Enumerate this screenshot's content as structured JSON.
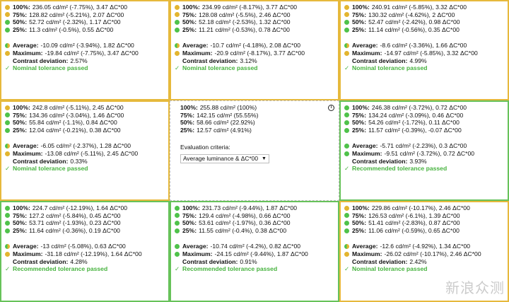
{
  "cells": [
    {
      "border": "#e6b93c",
      "rows": [
        {
          "label": "100%:",
          "value": "236.05 cd/m² (-7.75%), 3.47 ΔC*00",
          "dot": "yellow"
        },
        {
          "label": "75%:",
          "value": "128.82 cd/m² (-5.21%), 2.07 ΔC*00",
          "dot": "yellow"
        },
        {
          "label": "50%:",
          "value": "52.72 cd/m² (-2.32%), 1.17 ΔC*00",
          "dot": "green"
        },
        {
          "label": "25%:",
          "value": "11.3 cd/m² (-0.5%), 0.55 ΔC*00",
          "dot": "green"
        }
      ],
      "average": {
        "label": "Average:",
        "value": "-10.09 cd/m² (-3.94%), 1.82 ΔC*00",
        "dot": "half"
      },
      "maximum": {
        "label": "Maximum:",
        "value": "-19.84 cd/m² (-7.75%), 3.47 ΔC*00",
        "dot": "yellow"
      },
      "contrast": {
        "label": "Contrast deviation:",
        "value": "2.57%"
      },
      "status": "Nominal tolerance passed"
    },
    {
      "border": "#e6b93c",
      "rows": [
        {
          "label": "100%:",
          "value": "234.99 cd/m² (-8.17%), 3.77 ΔC*00",
          "dot": "yellow"
        },
        {
          "label": "75%:",
          "value": "128.08 cd/m² (-5.5%), 2.46 ΔC*00",
          "dot": "yellow"
        },
        {
          "label": "50%:",
          "value": "52.18 cd/m² (-2.53%), 1.32 ΔC*00",
          "dot": "green"
        },
        {
          "label": "25%:",
          "value": "11.21 cd/m² (-0.53%), 0.78 ΔC*00",
          "dot": "green"
        }
      ],
      "average": {
        "label": "Average:",
        "value": "-10.7 cd/m² (-4.18%), 2.08 ΔC*00",
        "dot": "half"
      },
      "maximum": {
        "label": "Maximum:",
        "value": "-20.9 cd/m² (-8.17%), 3.77 ΔC*00",
        "dot": "yellow"
      },
      "contrast": {
        "label": "Contrast deviation:",
        "value": "3.12%"
      },
      "status": "Nominal tolerance passed"
    },
    {
      "border": "#e6b93c",
      "rows": [
        {
          "label": "100%:",
          "value": "240.91 cd/m² (-5.85%), 3.32 ΔC*00",
          "dot": "yellow"
        },
        {
          "label": "75%:",
          "value": "130.32 cd/m² (-4.62%), 2 ΔC*00",
          "dot": "yellow"
        },
        {
          "label": "50%:",
          "value": "52.47 cd/m² (-2.42%), 0.98 ΔC*00",
          "dot": "green"
        },
        {
          "label": "25%:",
          "value": "11.14 cd/m² (-0.56%), 0.35 ΔC*00",
          "dot": "green"
        }
      ],
      "average": {
        "label": "Average:",
        "value": "-8.6 cd/m² (-3.36%), 1.66 ΔC*00",
        "dot": "half"
      },
      "maximum": {
        "label": "Maximum:",
        "value": "-14.97 cd/m² (-5.85%), 3.32 ΔC*00",
        "dot": "yellow"
      },
      "contrast": {
        "label": "Contrast deviation:",
        "value": "4.99%"
      },
      "status": "Nominal tolerance passed"
    },
    {
      "border": "#e6b93c",
      "rows": [
        {
          "label": "100%:",
          "value": "242.8 cd/m² (-5.11%), 2.45 ΔC*00",
          "dot": "yellow"
        },
        {
          "label": "75%:",
          "value": "134.36 cd/m² (-3.04%), 1.46 ΔC*00",
          "dot": "green"
        },
        {
          "label": "50%:",
          "value": "55.84 cd/m² (-1.1%), 0.84 ΔC*00",
          "dot": "green"
        },
        {
          "label": "25%:",
          "value": "12.04 cd/m² (-0.21%), 0.38 ΔC*00",
          "dot": "green"
        }
      ],
      "average": {
        "label": "Average:",
        "value": "-6.05 cd/m² (-2.37%), 1.28 ΔC*00",
        "dot": "half"
      },
      "maximum": {
        "label": "Maximum:",
        "value": "-13.08 cd/m² (-5.11%), 2.45 ΔC*00",
        "dot": "yellow"
      },
      "contrast": {
        "label": "Contrast deviation:",
        "value": "0.33%"
      },
      "status": "Nominal tolerance passed"
    },
    {
      "reference": true,
      "rows": [
        {
          "label": "100%:",
          "value": "255.88 cd/m² (100%)"
        },
        {
          "label": "75%:",
          "value": "142.15 cd/m² (55.55%)"
        },
        {
          "label": "50%:",
          "value": "58.66 cd/m² (22.92%)"
        },
        {
          "label": "25%:",
          "value": "12.57 cd/m² (4.91%)"
        }
      ],
      "criteria_label": "Evaluation criteria:",
      "criteria_value": "Average luminance & ΔC*00",
      "info_icon": "info-icon"
    },
    {
      "border": "#67c25a",
      "rows": [
        {
          "label": "100%:",
          "value": "246.38 cd/m² (-3.72%), 0.72 ΔC*00",
          "dot": "green"
        },
        {
          "label": "75%:",
          "value": "134.24 cd/m² (-3.09%), 0.46 ΔC*00",
          "dot": "green"
        },
        {
          "label": "50%:",
          "value": "54.26 cd/m² (-1.72%), 0.11 ΔC*00",
          "dot": "green"
        },
        {
          "label": "25%:",
          "value": "11.57 cd/m² (-0.39%), -0.07 ΔC*00",
          "dot": "green"
        }
      ],
      "average": {
        "label": "Average:",
        "value": "-5.71 cd/m² (-2.23%), 0.3 ΔC*00",
        "dot": "green"
      },
      "maximum": {
        "label": "Maximum:",
        "value": "-9.51 cd/m² (-3.72%), 0.72 ΔC*00",
        "dot": "green"
      },
      "contrast": {
        "label": "Contrast deviation:",
        "value": "3.93%"
      },
      "status": "Recommended tolerance passed"
    },
    {
      "border": "#67c25a",
      "rows": [
        {
          "label": "100%:",
          "value": "224.7 cd/m² (-12.19%), 1.64 ΔC*00",
          "dot": "green"
        },
        {
          "label": "75%:",
          "value": "127.2 cd/m² (-5.84%), 0.45 ΔC*00",
          "dot": "green"
        },
        {
          "label": "50%:",
          "value": "53.71 cd/m² (-1.93%), 0.23 ΔC*00",
          "dot": "green"
        },
        {
          "label": "25%:",
          "value": "11.64 cd/m² (-0.36%), 0.19 ΔC*00",
          "dot": "green"
        }
      ],
      "average": {
        "label": "Average:",
        "value": "-13 cd/m² (-5.08%), 0.63 ΔC*00",
        "dot": "half"
      },
      "maximum": {
        "label": "Maximum:",
        "value": "-31.18 cd/m² (-12.19%), 1.64 ΔC*00",
        "dot": "yellow"
      },
      "contrast": {
        "label": "Contrast deviation:",
        "value": "4.28%"
      },
      "status": "Recommended tolerance passed"
    },
    {
      "border": "#67c25a",
      "rows": [
        {
          "label": "100%:",
          "value": "231.73 cd/m² (-9.44%), 1.87 ΔC*00",
          "dot": "green"
        },
        {
          "label": "75%:",
          "value": "129.4 cd/m² (-4.98%), 0.66 ΔC*00",
          "dot": "green"
        },
        {
          "label": "50%:",
          "value": "53.61 cd/m² (-1.97%), 0.36 ΔC*00",
          "dot": "green"
        },
        {
          "label": "25%:",
          "value": "11.55 cd/m² (-0.4%), 0.38 ΔC*00",
          "dot": "green"
        }
      ],
      "average": {
        "label": "Average:",
        "value": "-10.74 cd/m² (-4.2%), 0.82 ΔC*00",
        "dot": "green"
      },
      "maximum": {
        "label": "Maximum:",
        "value": "-24.15 cd/m² (-9.44%), 1.87 ΔC*00",
        "dot": "green"
      },
      "contrast": {
        "label": "Contrast deviation:",
        "value": "0.91%"
      },
      "status": "Recommended tolerance passed"
    },
    {
      "border": "#e6b93c",
      "rows": [
        {
          "label": "100%:",
          "value": "229.86 cd/m² (-10.17%), 2.46 ΔC*00",
          "dot": "yellow"
        },
        {
          "label": "75%:",
          "value": "126.53 cd/m² (-6.1%), 1.39 ΔC*00",
          "dot": "green"
        },
        {
          "label": "50%:",
          "value": "51.41 cd/m² (-2.83%), 0.87 ΔC*00",
          "dot": "green"
        },
        {
          "label": "25%:",
          "value": "11.06 cd/m² (-0.59%), 0.65 ΔC*00",
          "dot": "green"
        }
      ],
      "average": {
        "label": "Average:",
        "value": "-12.6 cd/m² (-4.92%), 1.34 ΔC*00",
        "dot": "half"
      },
      "maximum": {
        "label": "Maximum:",
        "value": "-26.02 cd/m² (-10.17%), 2.46 ΔC*00",
        "dot": "yellow"
      },
      "contrast": {
        "label": "Contrast deviation:",
        "value": "2.42%"
      },
      "status": "Nominal tolerance passed"
    }
  ],
  "check_glyph": "✓",
  "watermark": "新浪众测",
  "colors": {
    "nominal_border": "#e6b93c",
    "recommended_border": "#67c25a",
    "status_text": "#47b33f",
    "dot_yellow": "#e3b52f",
    "dot_green": "#4fc24a"
  }
}
